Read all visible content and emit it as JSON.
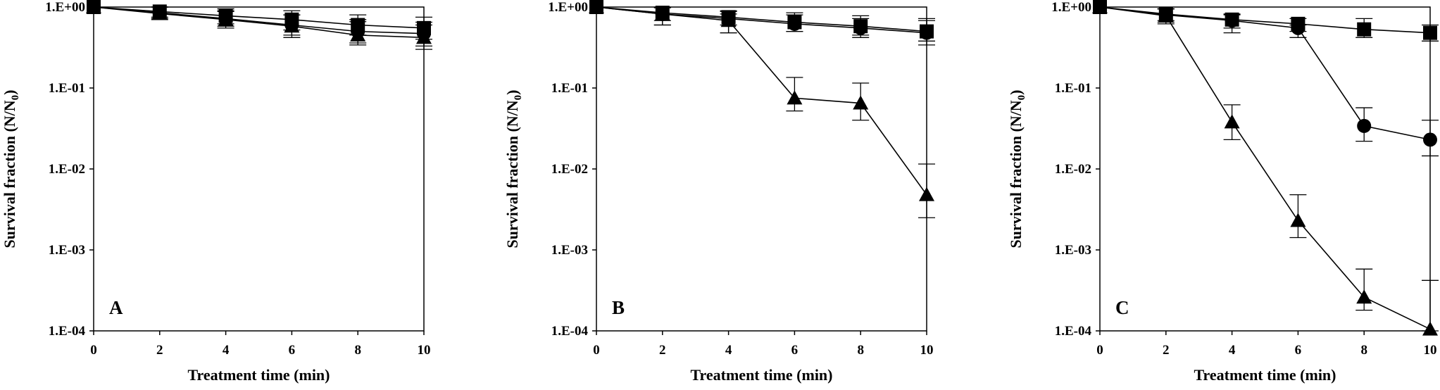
{
  "chart_data": [
    {
      "panel_label": "A",
      "type": "line",
      "xlabel": "Treatment time (min)",
      "ylabel_main": "Survival fraction (N/N",
      "ylabel_sub": "0",
      "ylabel_end": ")",
      "y_scale": "log",
      "xlim": [
        0,
        10
      ],
      "ylim": [
        0.0001,
        1
      ],
      "xticks": [
        0,
        2,
        4,
        6,
        8,
        10
      ],
      "xtick_labels": [
        "0",
        "2",
        "4",
        "6",
        "8",
        "10"
      ],
      "yticks": [
        1,
        0.1,
        0.01,
        0.001,
        0.0001
      ],
      "ytick_labels": [
        "1.E+00",
        "1.E-01",
        "1.E-02",
        "1.E-03",
        "1.E-04"
      ],
      "grid": false,
      "series": [
        {
          "marker": "square",
          "x": [
            0,
            2,
            4,
            6,
            8,
            10
          ],
          "y": [
            1.0,
            0.88,
            0.78,
            0.7,
            0.6,
            0.55
          ],
          "err_high": [
            1.0,
            1.0,
            0.95,
            0.9,
            0.8,
            0.75
          ],
          "err_low": [
            1.0,
            0.75,
            0.62,
            0.52,
            0.45,
            0.4
          ]
        },
        {
          "marker": "circle",
          "x": [
            0,
            2,
            4,
            6,
            8,
            10
          ],
          "y": [
            1.0,
            0.85,
            0.72,
            0.6,
            0.5,
            0.47
          ],
          "err_high": [
            1.0,
            1.0,
            0.9,
            0.8,
            0.7,
            0.65
          ],
          "err_low": [
            1.0,
            0.72,
            0.58,
            0.45,
            0.36,
            0.33
          ]
        },
        {
          "marker": "triangle",
          "x": [
            0,
            2,
            4,
            6,
            8,
            10
          ],
          "y": [
            1.0,
            0.83,
            0.7,
            0.58,
            0.45,
            0.42
          ],
          "err_high": [
            1.0,
            1.0,
            0.88,
            0.8,
            0.66,
            0.6
          ],
          "err_low": [
            1.0,
            0.7,
            0.55,
            0.42,
            0.34,
            0.3
          ]
        }
      ]
    },
    {
      "panel_label": "B",
      "type": "line",
      "xlabel": "Treatment time (min)",
      "ylabel_main": "Survival fraction (N/N",
      "ylabel_sub": "0",
      "ylabel_end": ")",
      "y_scale": "log",
      "xlim": [
        0,
        10
      ],
      "ylim": [
        0.0001,
        1
      ],
      "xticks": [
        0,
        2,
        4,
        6,
        8,
        10
      ],
      "xtick_labels": [
        "0",
        "2",
        "4",
        "6",
        "8",
        "10"
      ],
      "yticks": [
        1,
        0.1,
        0.01,
        0.001,
        0.0001
      ],
      "ytick_labels": [
        "1.E+00",
        "1.E-01",
        "1.E-02",
        "1.E-03",
        "1.E-04"
      ],
      "grid": false,
      "series": [
        {
          "marker": "square",
          "x": [
            0,
            2,
            4,
            6,
            8,
            10
          ],
          "y": [
            1.0,
            0.85,
            0.75,
            0.65,
            0.58,
            0.5
          ],
          "err_high": [
            1.0,
            1.0,
            0.9,
            0.85,
            0.78,
            0.68
          ],
          "err_low": [
            1.0,
            0.68,
            0.6,
            0.5,
            0.45,
            0.38
          ]
        },
        {
          "marker": "circle",
          "x": [
            0,
            2,
            4,
            6,
            8,
            10
          ],
          "y": [
            1.0,
            0.82,
            0.72,
            0.62,
            0.55,
            0.48
          ],
          "err_high": [
            1.0,
            0.98,
            0.88,
            0.8,
            0.72,
            0.72
          ],
          "err_low": [
            1.0,
            0.6,
            0.48,
            0.5,
            0.42,
            0.34
          ]
        },
        {
          "marker": "triangle",
          "x": [
            0,
            2,
            4,
            6,
            8,
            10
          ],
          "y": [
            1.0,
            0.82,
            0.68,
            0.075,
            0.065,
            0.0048
          ],
          "err_high": [
            1.0,
            0.98,
            0.82,
            0.135,
            0.115,
            0.0115
          ],
          "err_low": [
            1.0,
            0.6,
            0.48,
            0.052,
            0.04,
            0.0025
          ]
        }
      ]
    },
    {
      "panel_label": "C",
      "type": "line",
      "xlabel": "Treatment time (min)",
      "ylabel_main": "Survival fraction (N/N",
      "ylabel_sub": "0",
      "ylabel_end": ")",
      "y_scale": "log",
      "xlim": [
        0,
        10
      ],
      "ylim": [
        0.0001,
        1
      ],
      "xticks": [
        0,
        2,
        4,
        6,
        8,
        10
      ],
      "xtick_labels": [
        "0",
        "2",
        "4",
        "6",
        "8",
        "10"
      ],
      "yticks": [
        1,
        0.1,
        0.01,
        0.001,
        0.0001
      ],
      "ytick_labels": [
        "1.E+00",
        "1.E-01",
        "1.E-02",
        "1.E-03",
        "1.E-04"
      ],
      "grid": false,
      "series": [
        {
          "marker": "square",
          "x": [
            0,
            2,
            4,
            6,
            8,
            10
          ],
          "y": [
            1.0,
            0.82,
            0.7,
            0.62,
            0.53,
            0.48
          ],
          "err_high": [
            1.0,
            0.95,
            0.82,
            0.72,
            0.72,
            0.6
          ],
          "err_low": [
            1.0,
            0.68,
            0.48,
            0.5,
            0.42,
            0.38
          ]
        },
        {
          "marker": "circle",
          "x": [
            0,
            2,
            4,
            6,
            8,
            10
          ],
          "y": [
            1.0,
            0.8,
            0.68,
            0.55,
            0.034,
            0.023
          ],
          "err_high": [
            1.0,
            0.95,
            0.8,
            0.6,
            0.057,
            0.04
          ],
          "err_low": [
            1.0,
            0.65,
            0.55,
            0.42,
            0.022,
            0.0145
          ]
        },
        {
          "marker": "triangle",
          "x": [
            0,
            2,
            4,
            6,
            8,
            10
          ],
          "y": [
            1.0,
            0.78,
            0.038,
            0.0023,
            0.00026,
            0.000105
          ],
          "err_high": [
            1.0,
            0.95,
            0.062,
            0.0048,
            0.00058,
            0.00042
          ],
          "err_low": [
            1.0,
            0.62,
            0.023,
            0.00142,
            0.00018,
            0.0001
          ]
        }
      ]
    }
  ]
}
